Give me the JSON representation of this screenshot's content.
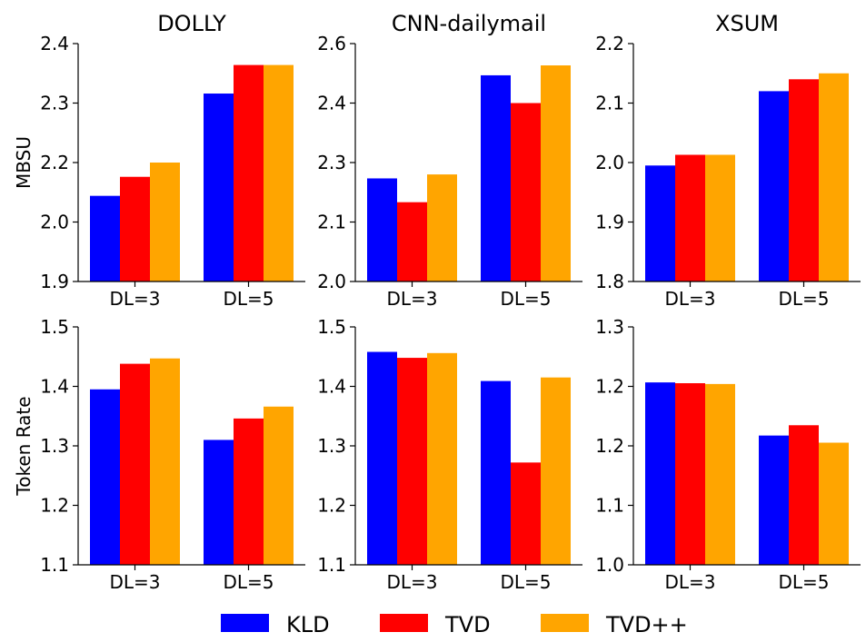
{
  "colors": {
    "KLD": "#0000ff",
    "TVD": "#ff0000",
    "TVD++": "#ffa500"
  },
  "legend": {
    "placement": "bottom-center",
    "entries": [
      "KLD",
      "TVD",
      "TVD++"
    ]
  },
  "chart_data": [
    {
      "type": "bar",
      "title": "DOLLY",
      "ylabel": "MBSU",
      "categories": [
        "DL=3",
        "DL=5"
      ],
      "ylim": [
        1.9,
        2.4
      ],
      "yticks": [
        "1.9",
        "2.0",
        "2.2",
        "2.3",
        "2.4"
      ],
      "series": [
        {
          "name": "KLD",
          "values": [
            2.08,
            2.295
          ]
        },
        {
          "name": "TVD",
          "values": [
            2.12,
            2.355
          ]
        },
        {
          "name": "TVD++",
          "values": [
            2.15,
            2.355
          ]
        }
      ]
    },
    {
      "type": "bar",
      "title": "CNN-dailymail",
      "ylabel": "",
      "categories": [
        "DL=3",
        "DL=5"
      ],
      "ylim": [
        2.0,
        2.6
      ],
      "yticks": [
        "2.0",
        "2.1",
        "2.3",
        "2.4",
        "2.6"
      ],
      "series": [
        {
          "name": "KLD",
          "values": [
            2.26,
            2.52
          ]
        },
        {
          "name": "TVD",
          "values": [
            2.2,
            2.45
          ]
        },
        {
          "name": "TVD++",
          "values": [
            2.27,
            2.545
          ]
        }
      ]
    },
    {
      "type": "bar",
      "title": "XSUM",
      "ylabel": "",
      "categories": [
        "DL=3",
        "DL=5"
      ],
      "ylim": [
        1.8,
        2.2
      ],
      "yticks": [
        "1.8",
        "1.9",
        "2.0",
        "2.1",
        "2.2"
      ],
      "series": [
        {
          "name": "KLD",
          "values": [
            1.995,
            2.12
          ]
        },
        {
          "name": "TVD",
          "values": [
            2.013,
            2.14
          ]
        },
        {
          "name": "TVD++",
          "values": [
            2.013,
            2.15
          ]
        }
      ]
    },
    {
      "type": "bar",
      "title": "",
      "ylabel": "Token Rate",
      "categories": [
        "DL=3",
        "DL=5"
      ],
      "ylim": [
        1.1,
        1.5
      ],
      "yticks": [
        "1.1",
        "1.2",
        "1.3",
        "1.4",
        "1.5"
      ],
      "series": [
        {
          "name": "KLD",
          "values": [
            1.395,
            1.31
          ]
        },
        {
          "name": "TVD",
          "values": [
            1.438,
            1.346
          ]
        },
        {
          "name": "TVD++",
          "values": [
            1.447,
            1.366
          ]
        }
      ]
    },
    {
      "type": "bar",
      "title": "",
      "ylabel": "",
      "categories": [
        "DL=3",
        "DL=5"
      ],
      "ylim": [
        1.1,
        1.5
      ],
      "yticks": [
        "1.1",
        "1.2",
        "1.3",
        "1.4",
        "1.5"
      ],
      "series": [
        {
          "name": "KLD",
          "values": [
            1.458,
            1.409
          ]
        },
        {
          "name": "TVD",
          "values": [
            1.448,
            1.272
          ]
        },
        {
          "name": "TVD++",
          "values": [
            1.456,
            1.415
          ]
        }
      ]
    },
    {
      "type": "bar",
      "title": "",
      "ylabel": "",
      "categories": [
        "DL=3",
        "DL=5"
      ],
      "ylim": [
        1.0,
        1.3
      ],
      "yticks": [
        "1.0",
        "1.1",
        "1.2",
        "1.2",
        "1.3"
      ],
      "series": [
        {
          "name": "KLD",
          "values": [
            1.23,
            1.163
          ]
        },
        {
          "name": "TVD",
          "values": [
            1.229,
            1.176
          ]
        },
        {
          "name": "TVD++",
          "values": [
            1.228,
            1.154
          ]
        }
      ]
    }
  ]
}
